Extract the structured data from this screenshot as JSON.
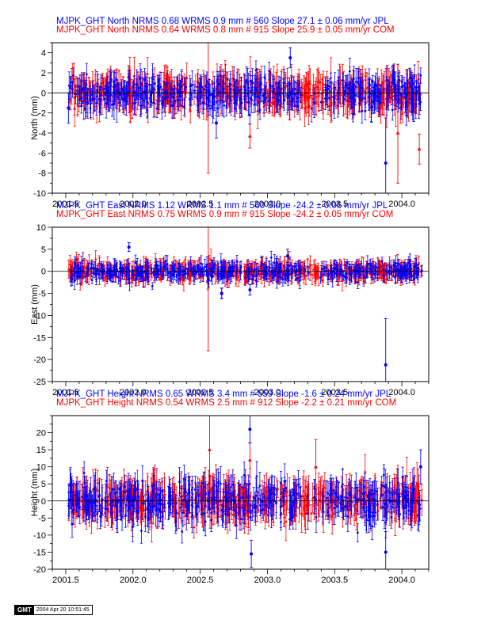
{
  "figure": {
    "panels": [
      {
        "id": "north",
        "ylabel": "North (mm)",
        "header_lines": [
          {
            "text": "MJPK_GHT North NRMS 0.68 WRMS  0.9 mm # 560 Slope   27.1 ±  0.06 mm/yr JPL",
            "color": "#0000ff"
          },
          {
            "text": "MJPK_GHT North NRMS 0.64 WRMS  0.8 mm # 915 Slope   25.9 ±  0.05 mm/yr COM",
            "color": "#ff0000"
          }
        ]
      },
      {
        "id": "east",
        "ylabel": "East (mm)",
        "header_lines": [
          {
            "text": "MJPK_GHT East NRMS 1.12 WRMS  1.1 mm # 560 Slope  -24.2 ±  0.06 mm/yr JPL",
            "color": "#0000ff"
          },
          {
            "text": "MJPK_GHT East NRMS 0.75 WRMS  0.9 mm # 915 Slope  -24.2 ±  0.05 mm/yr COM",
            "color": "#ff0000"
          }
        ]
      },
      {
        "id": "height",
        "ylabel": "Height (mm)",
        "header_lines": [
          {
            "text": "MJPK_GHT Height NRMS 0.65 WRMS  3.4 mm # 559 Slope   -1.6 ±  0.24 mm/yr JPL",
            "color": "#0000ff"
          },
          {
            "text": "MJPK_GHT Height NRMS 0.54 WRMS  2.5 mm # 912 Slope   -2.2 ±  0.21 mm/yr COM",
            "color": "#ff0000"
          }
        ]
      }
    ]
  },
  "gmt_stamp": {
    "logo": "GMT",
    "timestamp": "2004 Apr 20 10:51:45"
  },
  "chart_data": [
    {
      "type": "scatter",
      "panel": "north",
      "ylabel": "North (mm)",
      "xlim": [
        2001.4,
        2004.2
      ],
      "ylim": [
        -10,
        5
      ],
      "x_ticks": [
        2001.5,
        2002.0,
        2002.5,
        2003.0,
        2003.5,
        2004.0
      ],
      "x_tick_labels": [
        "2001.5",
        "2002.0",
        "2002.5",
        "2003.0",
        "2003.5",
        "2004.0"
      ],
      "y_ticks": [
        -10,
        -8,
        -6,
        -4,
        -2,
        0,
        2,
        4
      ],
      "grid": false,
      "zero_line": true,
      "series": [
        {
          "name": "JPL",
          "color": "#0000ff",
          "marker": "circle",
          "count": 560,
          "wrms": 0.9,
          "nrms": 0.68,
          "x_range": [
            2001.52,
            2004.15
          ],
          "typical_sigma": 1.0,
          "outliers": [
            {
              "x": 2003.88,
              "y": -7.0,
              "err": 4.5
            },
            {
              "x": 2002.62,
              "y": -3.0,
              "err": 1.5
            },
            {
              "x": 2003.17,
              "y": 3.5,
              "err": 1.0
            },
            {
              "x": 2001.52,
              "y": -1.5,
              "err": 1.5
            }
          ]
        },
        {
          "name": "COM",
          "color": "#ff0000",
          "marker": "triangle",
          "count": 915,
          "wrms": 0.8,
          "nrms": 0.64,
          "x_range": [
            2001.52,
            2004.15
          ],
          "typical_sigma": 1.3,
          "outliers": [
            {
              "x": 2002.56,
              "y": 1.0,
              "err": 9.0
            },
            {
              "x": 2002.87,
              "y": -4.3,
              "err": 1.2
            },
            {
              "x": 2004.13,
              "y": -5.6,
              "err": 1.5
            },
            {
              "x": 2003.97,
              "y": -4.0,
              "err": 5.0
            }
          ]
        }
      ]
    },
    {
      "type": "scatter",
      "panel": "east",
      "ylabel": "East (mm)",
      "xlim": [
        2001.4,
        2004.2
      ],
      "ylim": [
        -25,
        10
      ],
      "x_ticks": [
        2001.5,
        2002.0,
        2002.5,
        2003.0,
        2003.5,
        2004.0
      ],
      "x_tick_labels": [
        "2001.5",
        "2002.0",
        "2002.5",
        "2003.0",
        "2003.5",
        "2004.0"
      ],
      "y_ticks": [
        -25,
        -20,
        -15,
        -10,
        -5,
        0,
        5,
        10
      ],
      "grid": false,
      "zero_line": true,
      "series": [
        {
          "name": "JPL",
          "color": "#0000ff",
          "marker": "circle",
          "count": 560,
          "wrms": 1.1,
          "nrms": 1.12,
          "x_range": [
            2001.52,
            2004.15
          ],
          "typical_sigma": 1.3,
          "outliers": [
            {
              "x": 2003.88,
              "y": -21.2,
              "err": 10.5
            },
            {
              "x": 2001.97,
              "y": 5.5,
              "err": 1.0
            },
            {
              "x": 2003.15,
              "y": 3.5,
              "err": 1.5
            },
            {
              "x": 2002.87,
              "y": -4.2,
              "err": 1.2
            },
            {
              "x": 2002.66,
              "y": -5.0,
              "err": 1.2
            }
          ]
        },
        {
          "name": "COM",
          "color": "#ff0000",
          "marker": "triangle",
          "count": 915,
          "wrms": 0.9,
          "nrms": 0.75,
          "x_range": [
            2001.52,
            2004.15
          ],
          "typical_sigma": 1.6,
          "outliers": [
            {
              "x": 2002.56,
              "y": 0.0,
              "err": 18.0
            },
            {
              "x": 2002.66,
              "y": -5.0,
              "err": 1.2
            },
            {
              "x": 2003.16,
              "y": 3.0,
              "err": 1.5
            }
          ]
        }
      ]
    },
    {
      "type": "scatter",
      "panel": "height",
      "ylabel": "Height (mm)",
      "xlim": [
        2001.4,
        2004.2
      ],
      "ylim": [
        -20,
        25
      ],
      "x_ticks": [
        2001.5,
        2002.0,
        2002.5,
        2003.0,
        2003.5,
        2004.0
      ],
      "x_tick_labels": [
        "2001.5",
        "2002.0",
        "2002.5",
        "2003.0",
        "2003.5",
        "2004.0"
      ],
      "y_ticks": [
        -20,
        -15,
        -10,
        -5,
        0,
        5,
        10,
        15,
        20
      ],
      "grid": false,
      "zero_line": true,
      "series": [
        {
          "name": "JPL",
          "color": "#0000ff",
          "marker": "circle",
          "count": 559,
          "wrms": 3.4,
          "nrms": 0.65,
          "x_range": [
            2001.52,
            2004.15
          ],
          "typical_sigma": 3.5,
          "outliers": [
            {
              "x": 2002.87,
              "y": 21.0,
              "err": 4.0
            },
            {
              "x": 2003.88,
              "y": -15.0,
              "err": 6.0
            },
            {
              "x": 2002.88,
              "y": -15.5,
              "err": 4.0
            },
            {
              "x": 2004.14,
              "y": 10.0,
              "err": 5.0
            }
          ]
        },
        {
          "name": "COM",
          "color": "#ff0000",
          "marker": "triangle",
          "count": 912,
          "wrms": 2.5,
          "nrms": 0.54,
          "x_range": [
            2001.52,
            2004.15
          ],
          "typical_sigma": 4.0,
          "outliers": [
            {
              "x": 2002.57,
              "y": 15.0,
              "err": 10.0
            },
            {
              "x": 2003.36,
              "y": 10.0,
              "err": 8.0
            },
            {
              "x": 2002.87,
              "y": 12.0,
              "err": 5.0
            }
          ]
        }
      ]
    }
  ]
}
